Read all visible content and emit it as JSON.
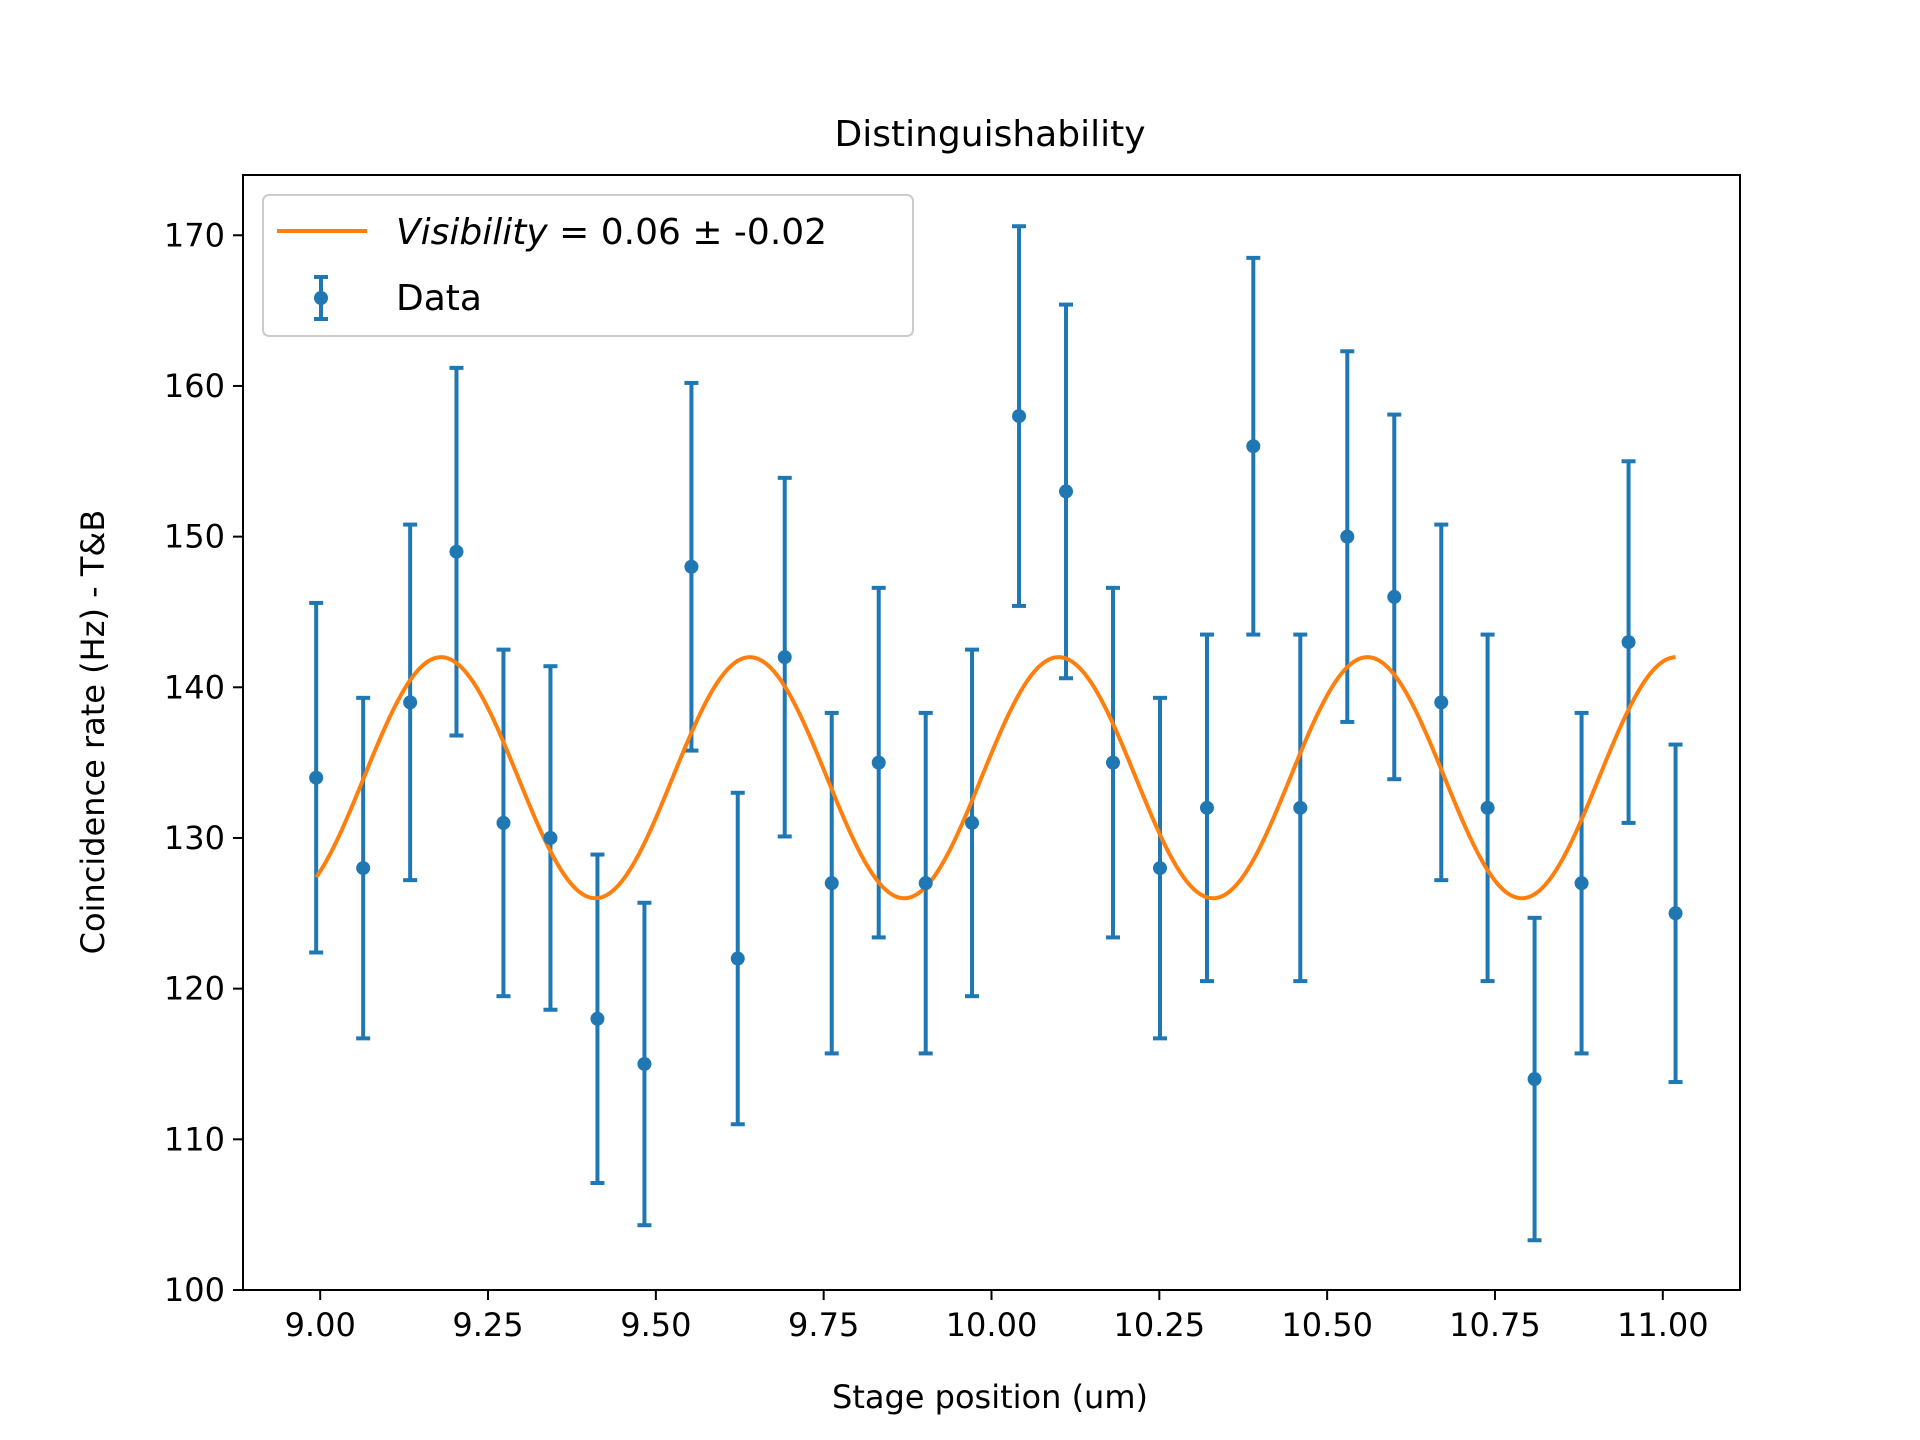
{
  "chart_data": {
    "type": "scatter",
    "title": "Distinguishability",
    "xlabel": "Stage position (um)",
    "ylabel": "Coincidence rate (Hz) - T&B",
    "xlim": [
      8.885,
      11.115
    ],
    "ylim": [
      100,
      174
    ],
    "xticks": [
      9.0,
      9.25,
      9.5,
      9.75,
      10.0,
      10.25,
      10.5,
      10.75,
      11.0
    ],
    "xtick_labels": [
      "9.00",
      "9.25",
      "9.50",
      "9.75",
      "10.00",
      "10.25",
      "10.50",
      "10.75",
      "11.00"
    ],
    "yticks": [
      100,
      110,
      120,
      130,
      140,
      150,
      160,
      170
    ],
    "ytick_labels": [
      "100",
      "110",
      "120",
      "130",
      "140",
      "150",
      "160",
      "170"
    ],
    "grid": false,
    "legend_position": "top-left",
    "series": [
      {
        "name": "Data",
        "kind": "errorbar",
        "color": "#1f77b4",
        "x": [
          8.994,
          9.064,
          9.134,
          9.203,
          9.273,
          9.343,
          9.413,
          9.483,
          9.553,
          9.622,
          9.692,
          9.762,
          9.832,
          9.902,
          9.971,
          10.041,
          10.111,
          10.181,
          10.251,
          10.321,
          10.39,
          10.46,
          10.53,
          10.6,
          10.67,
          10.739,
          10.809,
          10.879,
          10.949,
          11.019
        ],
        "y": [
          134,
          128,
          139,
          149,
          131,
          130,
          118,
          115,
          148,
          122,
          142,
          127,
          135,
          127,
          131,
          158,
          153,
          135,
          128,
          132,
          156,
          132,
          150,
          146,
          139,
          132,
          114,
          127,
          143,
          125
        ],
        "yerr": [
          11.6,
          11.3,
          11.8,
          12.2,
          11.5,
          11.4,
          10.9,
          10.7,
          12.2,
          11.0,
          11.9,
          11.3,
          11.6,
          11.3,
          11.5,
          12.6,
          12.4,
          11.6,
          11.3,
          11.5,
          12.5,
          11.5,
          12.3,
          12.1,
          11.8,
          11.5,
          10.7,
          11.3,
          12.0,
          11.2
        ]
      },
      {
        "name": "Visibility = 0.06 ± -0.02",
        "kind": "fit",
        "color": "#ff7f0e",
        "model": {
          "offset": 134,
          "amplitude": 8,
          "period": 0.46,
          "peak_x": 9.18
        },
        "x_range": [
          8.994,
          11.019
        ]
      }
    ],
    "legend": {
      "fit_italic": "Visibility",
      "fit_rest": " = 0.06 ± -0.02",
      "data_label": "Data"
    }
  }
}
